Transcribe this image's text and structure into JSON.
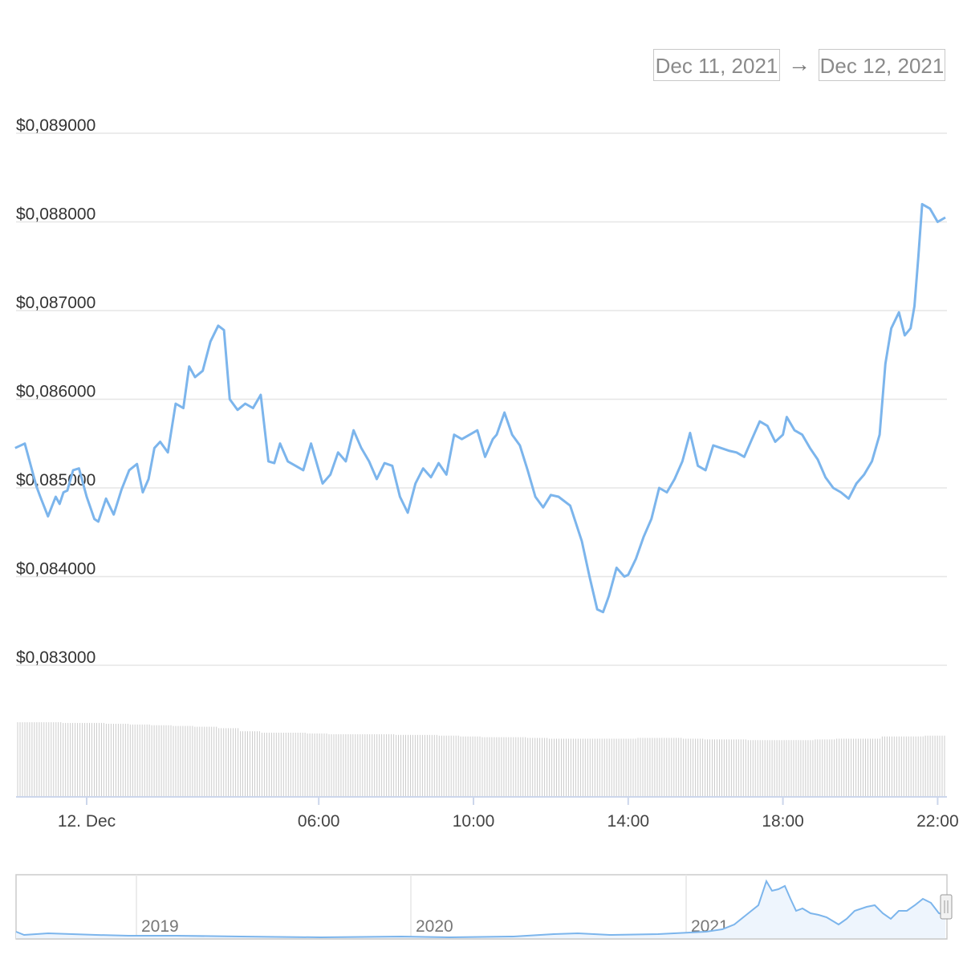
{
  "range_selector": {
    "from": "Dec 11, 2021",
    "arrow": "→",
    "to": "Dec 12, 2021"
  },
  "colors": {
    "line": "#7cb5ec",
    "grid": "#e6e6e6",
    "volume": "#cccccc",
    "navigator_fill": "#eef5fd"
  },
  "chart_data": {
    "type": "line",
    "title": "",
    "xlabel": "",
    "ylabel": "",
    "y_ticks": [
      "$0,089000",
      "$0,088000",
      "$0,087000",
      "$0,086000",
      "$0,085000",
      "$0,084000",
      "$0,083000"
    ],
    "ylim": [
      0.083,
      0.089
    ],
    "x_ticks": [
      "12. Dec",
      "06:00",
      "10:00",
      "14:00",
      "18:00",
      "22:00"
    ],
    "xlim_hours": [
      -1.85,
      22.2
    ],
    "x_tick_hours": [
      0,
      6,
      10,
      14,
      18,
      22
    ],
    "grid": true,
    "legend": "none",
    "series": [
      {
        "x_hours": [
          -1.85,
          -1.6,
          -1.3,
          -1.2,
          -1.0,
          -0.8,
          -0.7,
          -0.6,
          -0.5,
          -0.35,
          -0.2,
          0.0,
          0.2,
          0.3,
          0.5,
          0.7,
          0.9,
          1.1,
          1.3,
          1.45,
          1.6,
          1.75,
          1.9,
          2.1,
          2.3,
          2.5,
          2.65,
          2.8,
          3.0,
          3.2,
          3.4,
          3.55,
          3.7,
          3.9,
          4.1,
          4.3,
          4.5,
          4.7,
          4.85,
          5.0,
          5.2,
          5.4,
          5.6,
          5.8,
          6.0,
          6.1,
          6.3,
          6.5,
          6.7,
          6.9,
          7.1,
          7.3,
          7.5,
          7.7,
          7.9,
          8.1,
          8.3,
          8.5,
          8.7,
          8.9,
          9.1,
          9.3,
          9.5,
          9.7,
          9.9,
          10.1,
          10.3,
          10.5,
          10.6,
          10.8,
          11.0,
          11.2,
          11.4,
          11.6,
          11.8,
          12.0,
          12.2,
          12.5,
          12.8,
          13.0,
          13.2,
          13.35,
          13.5,
          13.7,
          13.9,
          14.0,
          14.2,
          14.4,
          14.6,
          14.8,
          15.0,
          15.2,
          15.4,
          15.6,
          15.8,
          16.0,
          16.2,
          16.4,
          16.6,
          16.8,
          17.0,
          17.2,
          17.4,
          17.6,
          17.8,
          18.0,
          18.1,
          18.3,
          18.5,
          18.7,
          18.9,
          19.1,
          19.3,
          19.5,
          19.7,
          19.9,
          20.1,
          20.3,
          20.5,
          20.65,
          20.8,
          21.0,
          21.15,
          21.3,
          21.4,
          21.5,
          21.6,
          21.8,
          22.0,
          22.2
        ],
        "y_values": [
          0.08545,
          0.0855,
          0.08502,
          0.0849,
          0.08468,
          0.0849,
          0.08482,
          0.08495,
          0.08497,
          0.0852,
          0.08522,
          0.0849,
          0.08465,
          0.08462,
          0.08488,
          0.0847,
          0.08498,
          0.0852,
          0.08527,
          0.08495,
          0.0851,
          0.08545,
          0.08552,
          0.0854,
          0.08595,
          0.0859,
          0.08637,
          0.08625,
          0.08632,
          0.08665,
          0.08683,
          0.08678,
          0.086,
          0.08588,
          0.08595,
          0.0859,
          0.08605,
          0.0853,
          0.08528,
          0.0855,
          0.0853,
          0.08525,
          0.0852,
          0.0855,
          0.0852,
          0.08505,
          0.08515,
          0.0854,
          0.0853,
          0.08565,
          0.08545,
          0.0853,
          0.0851,
          0.08528,
          0.08525,
          0.0849,
          0.08472,
          0.08505,
          0.08522,
          0.08512,
          0.08528,
          0.08515,
          0.0856,
          0.08555,
          0.0856,
          0.08565,
          0.08535,
          0.08555,
          0.0856,
          0.08585,
          0.0856,
          0.08548,
          0.0852,
          0.0849,
          0.08478,
          0.08492,
          0.0849,
          0.0848,
          0.0844,
          0.084,
          0.08363,
          0.0836,
          0.08378,
          0.0841,
          0.084,
          0.08402,
          0.0842,
          0.08445,
          0.08465,
          0.085,
          0.08495,
          0.0851,
          0.0853,
          0.08562,
          0.08525,
          0.0852,
          0.08548,
          0.08545,
          0.08542,
          0.0854,
          0.08535,
          0.08555,
          0.08575,
          0.0857,
          0.08552,
          0.0856,
          0.0858,
          0.08565,
          0.0856,
          0.08545,
          0.08532,
          0.08512,
          0.085,
          0.08495,
          0.08488,
          0.08505,
          0.08515,
          0.0853,
          0.0856,
          0.0864,
          0.0868,
          0.08698,
          0.08672,
          0.0868,
          0.08705,
          0.0876,
          0.0882,
          0.08815,
          0.088,
          0.08805
        ]
      }
    ],
    "volume": {
      "note_values_relative": [
        1.0,
        1.0,
        0.99,
        0.99,
        0.98,
        0.97,
        0.96,
        0.95,
        0.94,
        0.92,
        0.88,
        0.86,
        0.86,
        0.85,
        0.84,
        0.84,
        0.84,
        0.83,
        0.83,
        0.82,
        0.81,
        0.8,
        0.8,
        0.79,
        0.78,
        0.78,
        0.78,
        0.78,
        0.79,
        0.79,
        0.78,
        0.77,
        0.77,
        0.76,
        0.76,
        0.76,
        0.77,
        0.78,
        0.78,
        0.81,
        0.81,
        0.82
      ]
    },
    "navigator": {
      "x_ticks": [
        "2019",
        "2020",
        "2021"
      ]
    }
  }
}
